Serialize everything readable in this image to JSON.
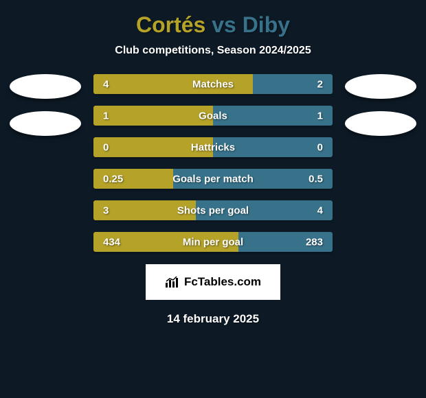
{
  "title": {
    "player1": "Cortés",
    "vs": "vs",
    "player2": "Diby"
  },
  "subtitle": "Club competitions, Season 2024/2025",
  "colors": {
    "player1_bar": "#b5a229",
    "player2_bar": "#37728a",
    "player1_text": "#b5a229",
    "player2_text": "#37728a",
    "background": "#0d1a26",
    "text": "#ffffff"
  },
  "stats": [
    {
      "label": "Matches",
      "left_value": "4",
      "right_value": "2",
      "left_pct": 66.67,
      "right_pct": 33.33
    },
    {
      "label": "Goals",
      "left_value": "1",
      "right_value": "1",
      "left_pct": 50,
      "right_pct": 50
    },
    {
      "label": "Hattricks",
      "left_value": "0",
      "right_value": "0",
      "left_pct": 50,
      "right_pct": 50
    },
    {
      "label": "Goals per match",
      "left_value": "0.25",
      "right_value": "0.5",
      "left_pct": 33.33,
      "right_pct": 66.67
    },
    {
      "label": "Shots per goal",
      "left_value": "3",
      "right_value": "4",
      "left_pct": 42.86,
      "right_pct": 57.14
    },
    {
      "label": "Min per goal",
      "left_value": "434",
      "right_value": "283",
      "left_pct": 60.53,
      "right_pct": 39.47
    }
  ],
  "logo": {
    "text": "FcTables.com",
    "icon": "📊"
  },
  "date": "14 february 2025",
  "avatar_count_per_side": 2
}
